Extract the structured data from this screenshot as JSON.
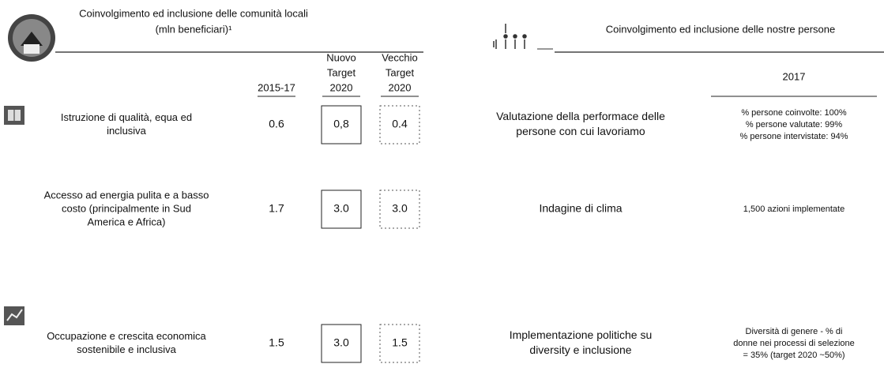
{
  "left": {
    "title": [
      "Coinvolgimento ed inclusione delle comunità locali",
      "(mln beneficiari)¹"
    ],
    "columns": [
      [
        "2015-17"
      ],
      [
        "Nuovo",
        "Target",
        "2020"
      ],
      [
        "Vecchio",
        "Target",
        "2020"
      ]
    ],
    "rows": [
      {
        "label": [
          "Istruzione di qualità, equa ed",
          "inclusiva"
        ],
        "values": [
          "0.6",
          "0,8",
          "0.4"
        ]
      },
      {
        "label": [
          "Accesso ad energia pulita e a basso",
          "costo (principalmente in Sud",
          "America e Africa)"
        ],
        "values": [
          "1.7",
          "3.0",
          "3.0"
        ]
      },
      {
        "label": [
          "Occupazione e crescita economica",
          "sostenibile e inclusiva"
        ],
        "values": [
          "1.5",
          "3.0",
          "1.5"
        ]
      }
    ]
  },
  "right": {
    "title": "Coinvolgimento ed inclusione delle nostre persone",
    "column": "2017",
    "rows": [
      {
        "label": [
          "Valutazione della performace delle",
          "persone con cui lavoriamo"
        ],
        "value": [
          "% persone coinvolte: 100%",
          "% persone valutate: 99%",
          "% persone intervistate: 94%"
        ]
      },
      {
        "label": [
          "Indagine di clima"
        ],
        "value": [
          "1,500 azioni implementate"
        ]
      },
      {
        "label": [
          "Implementazione politiche su",
          "diversity e inclusione"
        ],
        "value": [
          "Diversità di genere - % di",
          "donne nei processi di selezione",
          "= 35% (target 2020 ~50%)"
        ]
      }
    ]
  }
}
